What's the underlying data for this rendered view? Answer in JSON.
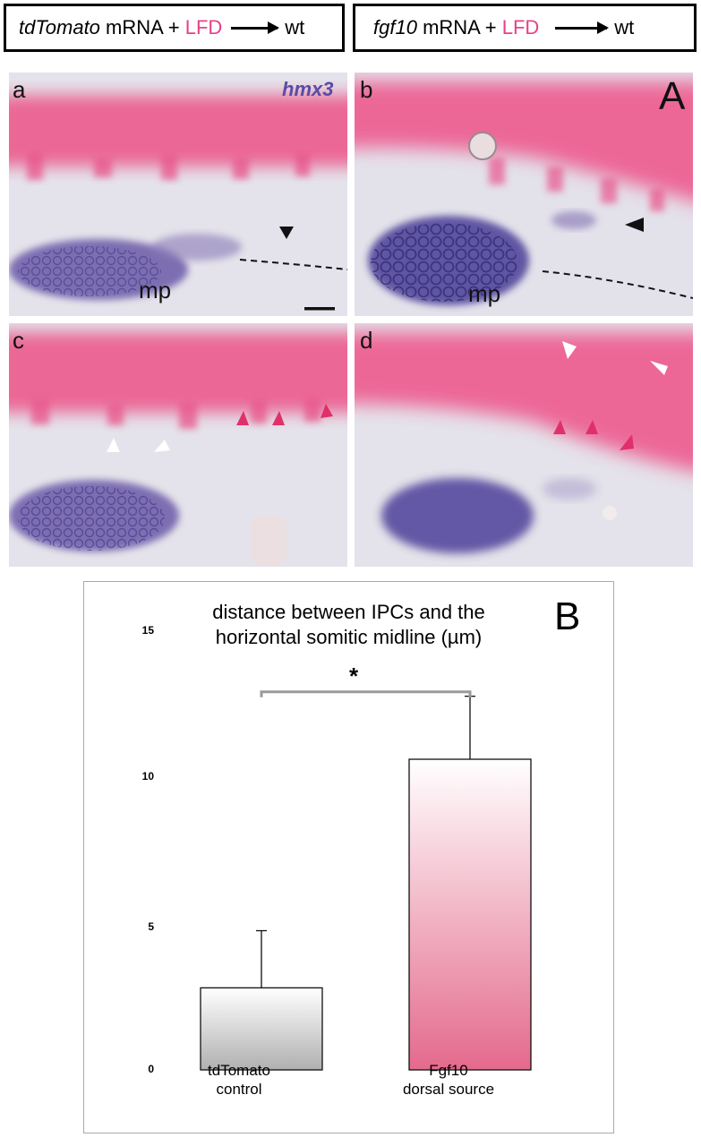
{
  "headers": [
    {
      "gene": "tdTomato",
      "mrna": "mRNA +",
      "lfd": "LFD",
      "target": "wt"
    },
    {
      "gene": "fgf10",
      "mrna": "mRNA +",
      "lfd": "LFD",
      "target": "wt"
    }
  ],
  "panel_a": {
    "letter": "A",
    "gene_label": "hmx3"
  },
  "panels": [
    {
      "letter": "a",
      "mp": "mp"
    },
    {
      "letter": "b",
      "mp": "mp"
    },
    {
      "letter": "c"
    },
    {
      "letter": "d"
    }
  ],
  "colors": {
    "magenta": "#e8408a",
    "purple": "#5a4ca6",
    "pink_stain": "#e85a8a"
  },
  "chart_data": {
    "type": "bar",
    "panel_letter": "B",
    "title_line1": "distance between IPCs and the",
    "title_line2": "horizontal somitic midline (µm)",
    "categories": [
      "tdTomato\ncontrol",
      "Fgf10\ndorsal source"
    ],
    "category_line1": [
      "tdTomato",
      "Fgf10"
    ],
    "category_line2": [
      "control",
      "dorsal source"
    ],
    "values": [
      2.8,
      10.6
    ],
    "errors": [
      1.95,
      2.15
    ],
    "ylim": [
      0,
      15
    ],
    "yticks": [
      "0",
      "5",
      "10",
      "15"
    ],
    "significance": "*",
    "bar_fills": [
      "gray-gradient",
      "pink-gradient"
    ]
  }
}
